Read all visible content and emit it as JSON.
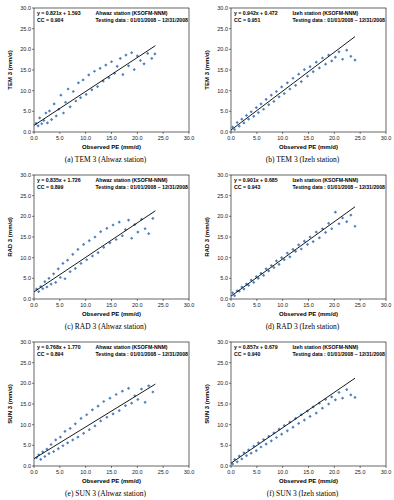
{
  "chart_data": [
    {
      "type": "scatter",
      "title": "(a) TEM 3 (Ahwaz station)",
      "x_label": "Observed PE (mm/d)",
      "y_label": "TEM 3 (mm/d)",
      "annotations": [
        "y = 0.821x + 1.593",
        "CC = 0.904",
        "Ahwaz station (KSOFM-NNM)",
        "Testing data : 01/01/2008 – 12/31/2008"
      ],
      "trendline": {
        "slope": 0.821,
        "intercept": 1.593,
        "x": [
          0,
          23.5
        ]
      },
      "color": "#4f81bd",
      "marker": "diamond",
      "x": [
        0.4,
        0.8,
        1.1,
        1.5,
        1.9,
        2.3,
        2.6,
        3.0,
        3.4,
        3.9,
        4.3,
        4.8,
        5.2,
        5.7,
        6.1,
        6.6,
        7.0,
        7.6,
        8.1,
        8.6,
        9.0,
        9.5,
        10.1,
        10.6,
        11.2,
        11.7,
        12.3,
        12.8,
        13.4,
        13.9,
        14.5,
        15.0,
        15.6,
        16.1,
        16.7,
        17.2,
        17.8,
        18.3,
        18.9,
        19.4,
        20.0,
        20.6,
        21.3,
        22.0,
        22.8,
        23.4
      ],
      "values": [
        2.1,
        1.5,
        3.4,
        2.0,
        2.8,
        4.6,
        2.2,
        5.1,
        3.0,
        6.8,
        3.9,
        5.5,
        8.9,
        4.6,
        7.2,
        10.4,
        6.1,
        9.8,
        7.5,
        11.9,
        8.3,
        12.6,
        9.1,
        13.8,
        10.2,
        14.7,
        11.0,
        15.4,
        12.3,
        16.2,
        13.1,
        17.0,
        14.2,
        15.9,
        17.8,
        13.9,
        18.6,
        16.0,
        19.2,
        15.1,
        18.4,
        17.3,
        16.5,
        19.0,
        17.8,
        18.9
      ],
      "xlim": [
        0,
        30
      ],
      "ylim": [
        0,
        30
      ],
      "xticks": [
        {
          "value": 0,
          "label": "0.0"
        },
        {
          "value": 5,
          "label": "5.0"
        },
        {
          "value": 10,
          "label": "10.0"
        },
        {
          "value": 15,
          "label": "15.0"
        },
        {
          "value": 20,
          "label": "20.0"
        },
        {
          "value": 25,
          "label": "25.0"
        },
        {
          "value": 30,
          "label": "30.0"
        }
      ],
      "yticks": [
        {
          "value": 0,
          "label": "0.0"
        },
        {
          "value": 5,
          "label": "5.0"
        },
        {
          "value": 10,
          "label": "10.0"
        },
        {
          "value": 15,
          "label": "15.0"
        },
        {
          "value": 20,
          "label": "20.0"
        },
        {
          "value": 25,
          "label": "25.0"
        },
        {
          "value": 30,
          "label": "30.0"
        }
      ],
      "grid": false
    },
    {
      "type": "scatter",
      "title": "(b) TEM 3 (Izeh station)",
      "x_label": "Observed PE (mm/d)",
      "y_label": "TEM 3 (mm/d)",
      "annotations": [
        "y = 0.942x + 0.472",
        "CC = 0.951",
        "Izeh station (KSOFM-NNM)",
        "Testing data : 01/01/2008 – 12/31/2008"
      ],
      "trendline": {
        "slope": 0.942,
        "intercept": 0.472,
        "x": [
          0,
          24
        ]
      },
      "color": "#4f81bd",
      "marker": "diamond",
      "x": [
        0.3,
        0.7,
        1.2,
        1.6,
        2.1,
        2.5,
        3.0,
        3.4,
        3.9,
        4.4,
        4.9,
        5.3,
        5.8,
        6.3,
        6.8,
        7.3,
        7.8,
        8.3,
        8.8,
        9.3,
        9.8,
        10.3,
        10.9,
        11.4,
        12.0,
        12.5,
        13.1,
        13.6,
        14.2,
        14.8,
        15.3,
        15.9,
        16.5,
        17.1,
        17.7,
        18.3,
        18.9,
        19.5,
        20.2,
        20.9,
        21.6,
        22.4,
        23.2,
        24.0
      ],
      "values": [
        1.2,
        0.6,
        2.3,
        1.4,
        3.1,
        2.2,
        4.0,
        3.1,
        4.9,
        3.8,
        5.9,
        4.7,
        6.8,
        5.5,
        7.9,
        6.6,
        8.9,
        7.4,
        9.8,
        8.5,
        10.9,
        9.3,
        11.9,
        10.4,
        13.0,
        11.3,
        14.0,
        12.2,
        15.1,
        13.5,
        15.8,
        14.6,
        16.9,
        15.5,
        17.9,
        16.4,
        18.6,
        17.2,
        18.1,
        19.4,
        17.6,
        19.8,
        18.3,
        17.4
      ],
      "xlim": [
        0,
        30
      ],
      "ylim": [
        0,
        30
      ],
      "xticks": [
        {
          "value": 0,
          "label": "0.0"
        },
        {
          "value": 5,
          "label": "5.0"
        },
        {
          "value": 10,
          "label": "10.0"
        },
        {
          "value": 15,
          "label": "15.0"
        },
        {
          "value": 20,
          "label": "20.0"
        },
        {
          "value": 25,
          "label": "25.0"
        },
        {
          "value": 30,
          "label": "30.0"
        }
      ],
      "yticks": [
        {
          "value": 0,
          "label": "0.0"
        },
        {
          "value": 5,
          "label": "5.0"
        },
        {
          "value": 10,
          "label": "10.0"
        },
        {
          "value": 15,
          "label": "15.0"
        },
        {
          "value": 20,
          "label": "20.0"
        },
        {
          "value": 25,
          "label": "25.0"
        },
        {
          "value": 30,
          "label": "30.0"
        }
      ],
      "grid": false
    },
    {
      "type": "scatter",
      "title": "(c) RAD 3 (Ahwaz station)",
      "x_label": "Observed PE (mm/d)",
      "y_label": "RAD 3 (mm/d)",
      "annotations": [
        "y = 0.835x + 1.726",
        "CC = 0.899",
        "Ahwaz station (KSOFM-NNM)",
        "Testing data : 01/01/2008 – 12/31/2008"
      ],
      "trendline": {
        "slope": 0.835,
        "intercept": 1.726,
        "x": [
          0,
          23.5
        ]
      },
      "color": "#4f81bd",
      "marker": "diamond",
      "x": [
        0.5,
        0.9,
        1.3,
        1.7,
        2.1,
        2.5,
        2.9,
        3.3,
        3.8,
        4.2,
        4.7,
        5.1,
        5.6,
        6.0,
        6.5,
        7.0,
        7.5,
        8.0,
        8.5,
        9.1,
        9.6,
        10.2,
        10.7,
        11.3,
        11.8,
        12.4,
        12.9,
        13.5,
        14.1,
        14.7,
        15.3,
        15.9,
        16.5,
        17.1,
        17.7,
        18.3,
        18.9,
        19.5,
        20.1,
        20.8,
        21.5,
        22.2,
        23.0
      ],
      "values": [
        2.4,
        1.8,
        3.0,
        2.5,
        4.2,
        2.9,
        5.0,
        3.6,
        6.1,
        4.0,
        7.3,
        5.2,
        8.6,
        4.9,
        9.4,
        6.6,
        10.8,
        7.4,
        12.0,
        8.6,
        13.2,
        9.5,
        14.1,
        10.4,
        15.0,
        11.2,
        16.3,
        12.5,
        17.1,
        13.6,
        17.9,
        14.4,
        18.6,
        15.3,
        16.8,
        19.1,
        14.7,
        18.0,
        16.2,
        19.3,
        17.0,
        15.8,
        19.5
      ],
      "xlim": [
        0,
        30
      ],
      "ylim": [
        0,
        30
      ],
      "xticks": [
        {
          "value": 0,
          "label": "0.0"
        },
        {
          "value": 5,
          "label": "5.0"
        },
        {
          "value": 10,
          "label": "10.0"
        },
        {
          "value": 15,
          "label": "15.0"
        },
        {
          "value": 20,
          "label": "20.0"
        },
        {
          "value": 25,
          "label": "25.0"
        },
        {
          "value": 30,
          "label": "30.0"
        }
      ],
      "yticks": [
        {
          "value": 0,
          "label": "0.0"
        },
        {
          "value": 5,
          "label": "5.0"
        },
        {
          "value": 10,
          "label": "10.0"
        },
        {
          "value": 15,
          "label": "15.0"
        },
        {
          "value": 20,
          "label": "20.0"
        },
        {
          "value": 25,
          "label": "25.0"
        },
        {
          "value": 30,
          "label": "30.0"
        }
      ],
      "grid": false
    },
    {
      "type": "scatter",
      "title": "(d) RAD 3 (Izeh station)",
      "x_label": "Observed PE (mm/d)",
      "y_label": "RAD 3 (mm/d)",
      "annotations": [
        "y = 0.901x + 0.685",
        "CC = 0.943",
        "Izeh station (KSOFM-NNM)",
        "Testing data : 01/01/2008 – 12/31/2008"
      ],
      "trendline": {
        "slope": 0.901,
        "intercept": 0.685,
        "x": [
          0,
          24
        ]
      },
      "color": "#4f81bd",
      "marker": "diamond",
      "x": [
        0.3,
        0.7,
        1.2,
        1.6,
        2.1,
        2.5,
        3.0,
        3.4,
        3.9,
        4.4,
        4.9,
        5.3,
        5.8,
        6.3,
        6.8,
        7.3,
        7.8,
        8.3,
        8.8,
        9.3,
        9.8,
        10.3,
        10.9,
        11.4,
        12.0,
        12.5,
        13.1,
        13.6,
        14.2,
        14.8,
        15.3,
        15.9,
        16.5,
        17.1,
        17.7,
        18.3,
        18.9,
        19.5,
        20.2,
        20.9,
        21.6,
        22.4,
        23.2,
        24.0
      ],
      "values": [
        1.5,
        0.8,
        2.0,
        1.9,
        2.9,
        2.4,
        3.6,
        3.3,
        4.6,
        4.0,
        5.4,
        5.0,
        6.2,
        5.7,
        7.3,
        6.8,
        8.1,
        7.6,
        9.2,
        8.4,
        10.0,
        9.5,
        11.1,
        10.2,
        12.0,
        11.5,
        13.1,
        12.1,
        14.0,
        13.2,
        15.0,
        13.9,
        16.2,
        14.8,
        17.0,
        16.1,
        18.3,
        17.0,
        21.0,
        18.2,
        19.6,
        18.7,
        20.3,
        17.6
      ],
      "xlim": [
        0,
        30
      ],
      "ylim": [
        0,
        30
      ],
      "xticks": [
        {
          "value": 0,
          "label": "0.0"
        },
        {
          "value": 5,
          "label": "5.0"
        },
        {
          "value": 10,
          "label": "10.0"
        },
        {
          "value": 15,
          "label": "15.0"
        },
        {
          "value": 20,
          "label": "20.0"
        },
        {
          "value": 25,
          "label": "25.0"
        },
        {
          "value": 30,
          "label": "30.0"
        }
      ],
      "yticks": [
        {
          "value": 0,
          "label": "0.0"
        },
        {
          "value": 5,
          "label": "5.0"
        },
        {
          "value": 10,
          "label": "10.0"
        },
        {
          "value": 15,
          "label": "15.0"
        },
        {
          "value": 20,
          "label": "20.0"
        },
        {
          "value": 25,
          "label": "25.0"
        },
        {
          "value": 30,
          "label": "30.0"
        }
      ],
      "grid": false
    },
    {
      "type": "scatter",
      "title": "(e) SUN 3 (Ahwaz station)",
      "x_label": "Observed PE (mm/d)",
      "y_label": "SUN 3 (mm/d)",
      "annotations": [
        "y = 0.768x + 1.770",
        "CC = 0.894",
        "Ahwaz station (KSOFM-NNM)",
        "Testing data : 01/01/2008 – 12/31/2008"
      ],
      "trendline": {
        "slope": 0.768,
        "intercept": 1.77,
        "x": [
          0,
          23.5
        ]
      },
      "color": "#4f81bd",
      "marker": "diamond",
      "x": [
        0.5,
        0.9,
        1.3,
        1.7,
        2.1,
        2.5,
        2.9,
        3.3,
        3.8,
        4.2,
        4.7,
        5.1,
        5.6,
        6.0,
        6.5,
        7.0,
        7.5,
        8.0,
        8.5,
        9.1,
        9.6,
        10.2,
        10.7,
        11.3,
        11.8,
        12.4,
        12.9,
        13.5,
        14.1,
        14.7,
        15.3,
        15.9,
        16.5,
        17.1,
        17.7,
        18.3,
        18.9,
        19.5,
        20.1,
        20.8,
        21.5,
        22.2,
        23.0
      ],
      "values": [
        2.0,
        2.7,
        1.6,
        3.4,
        2.3,
        4.1,
        3.0,
        5.2,
        3.5,
        6.3,
        4.2,
        7.0,
        4.9,
        8.4,
        5.6,
        9.1,
        6.3,
        10.2,
        7.0,
        11.5,
        7.9,
        12.4,
        8.8,
        13.6,
        9.7,
        14.5,
        10.9,
        15.6,
        11.8,
        16.4,
        12.6,
        17.3,
        13.4,
        18.1,
        14.6,
        18.8,
        15.2,
        17.0,
        16.1,
        18.6,
        15.4,
        19.4,
        17.9
      ],
      "xlim": [
        0,
        30
      ],
      "ylim": [
        0,
        30
      ],
      "xticks": [
        {
          "value": 0,
          "label": "0.0"
        },
        {
          "value": 5,
          "label": "5.0"
        },
        {
          "value": 10,
          "label": "10.0"
        },
        {
          "value": 15,
          "label": "15.0"
        },
        {
          "value": 20,
          "label": "20.0"
        },
        {
          "value": 25,
          "label": "25.0"
        },
        {
          "value": 30,
          "label": "30.0"
        }
      ],
      "yticks": [
        {
          "value": 0,
          "label": "0.0"
        },
        {
          "value": 5,
          "label": "5.0"
        },
        {
          "value": 10,
          "label": "10.0"
        },
        {
          "value": 15,
          "label": "15.0"
        },
        {
          "value": 20,
          "label": "20.0"
        },
        {
          "value": 25,
          "label": "25.0"
        },
        {
          "value": 30,
          "label": "30.0"
        }
      ],
      "grid": false
    },
    {
      "type": "scatter",
      "title": "(f) SUN 3 (Izeh station)",
      "x_label": "Observed PE (mm/d)",
      "y_label": "SUN 3 (mm/d)",
      "annotations": [
        "y = 0.857x + 0.679",
        "CC = 0.940",
        "Izeh station (KSOFM-NNM)",
        "Testing data : 01/01/2008 – 12/31/2008"
      ],
      "trendline": {
        "slope": 0.857,
        "intercept": 0.679,
        "x": [
          0,
          24
        ]
      },
      "color": "#4f81bd",
      "marker": "diamond",
      "x": [
        0.3,
        0.7,
        1.2,
        1.6,
        2.1,
        2.5,
        3.0,
        3.4,
        3.9,
        4.4,
        4.9,
        5.3,
        5.8,
        6.3,
        6.8,
        7.3,
        7.8,
        8.3,
        8.8,
        9.3,
        9.8,
        10.3,
        10.9,
        11.4,
        12.0,
        12.5,
        13.1,
        13.6,
        14.2,
        14.8,
        15.3,
        15.9,
        16.5,
        17.1,
        17.7,
        18.3,
        18.9,
        19.5,
        20.2,
        20.9,
        21.6,
        22.4,
        23.2,
        24.0
      ],
      "values": [
        0.5,
        1.6,
        1.0,
        2.4,
        1.7,
        3.2,
        2.5,
        3.9,
        3.1,
        4.8,
        3.7,
        5.6,
        4.6,
        6.4,
        5.3,
        7.2,
        6.1,
        8.0,
        6.9,
        8.9,
        7.7,
        9.8,
        8.5,
        10.6,
        9.4,
        11.5,
        10.3,
        12.4,
        11.1,
        13.3,
        12.0,
        14.3,
        12.8,
        15.2,
        14.0,
        16.1,
        15.0,
        16.7,
        16.0,
        17.8,
        16.4,
        18.5,
        17.2,
        16.6
      ],
      "xlim": [
        0,
        30
      ],
      "ylim": [
        0,
        30
      ],
      "xticks": [
        {
          "value": 0,
          "label": "0.0"
        },
        {
          "value": 5,
          "label": "5.0"
        },
        {
          "value": 10,
          "label": "10.0"
        },
        {
          "value": 15,
          "label": "15.0"
        },
        {
          "value": 20,
          "label": "20.0"
        },
        {
          "value": 25,
          "label": "25.0"
        },
        {
          "value": 30,
          "label": "30.0"
        }
      ],
      "yticks": [
        {
          "value": 0,
          "label": "0.0"
        },
        {
          "value": 5,
          "label": "5.0"
        },
        {
          "value": 10,
          "label": "10.0"
        },
        {
          "value": 15,
          "label": "15.0"
        },
        {
          "value": 20,
          "label": "20.0"
        },
        {
          "value": 25,
          "label": "25.0"
        },
        {
          "value": 30,
          "label": "30.0"
        }
      ],
      "grid": false
    }
  ]
}
